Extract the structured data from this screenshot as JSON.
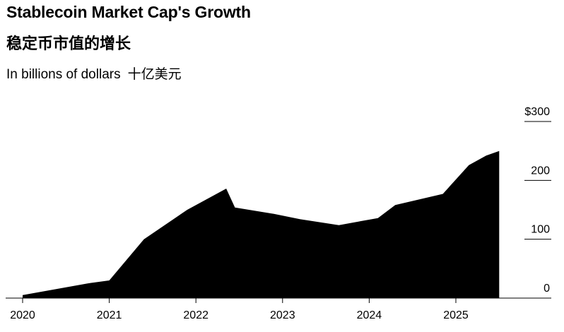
{
  "chart_data": {
    "type": "area",
    "title": "Stablecoin Market Cap's Growth",
    "title_cn": "稳定币市值的增长",
    "subtitle": "In billions of dollars",
    "subtitle_cn": "十亿美元",
    "x_tick_labels": [
      "2020",
      "2021",
      "2022",
      "2023",
      "2024",
      "2025"
    ],
    "y_tick_labels": [
      "$300",
      "200",
      "100",
      "0"
    ],
    "y_ticks": [
      300,
      200,
      100,
      0
    ],
    "ylim": [
      0,
      300
    ],
    "xlim": [
      2019.97,
      2026.0
    ],
    "y_axis_position": "right",
    "fill_color": "#000000",
    "series": [
      {
        "x": [
          2020.0,
          2020.75,
          2021.0,
          2021.4,
          2021.9,
          2022.35,
          2022.45,
          2022.9,
          2023.2,
          2023.65,
          2024.1,
          2024.3,
          2024.85,
          2025.15,
          2025.35,
          2025.5
        ],
        "values": [
          5,
          25,
          30,
          100,
          150,
          186,
          154,
          143,
          134,
          124,
          136,
          158,
          177,
          226,
          242,
          250
        ]
      }
    ]
  }
}
